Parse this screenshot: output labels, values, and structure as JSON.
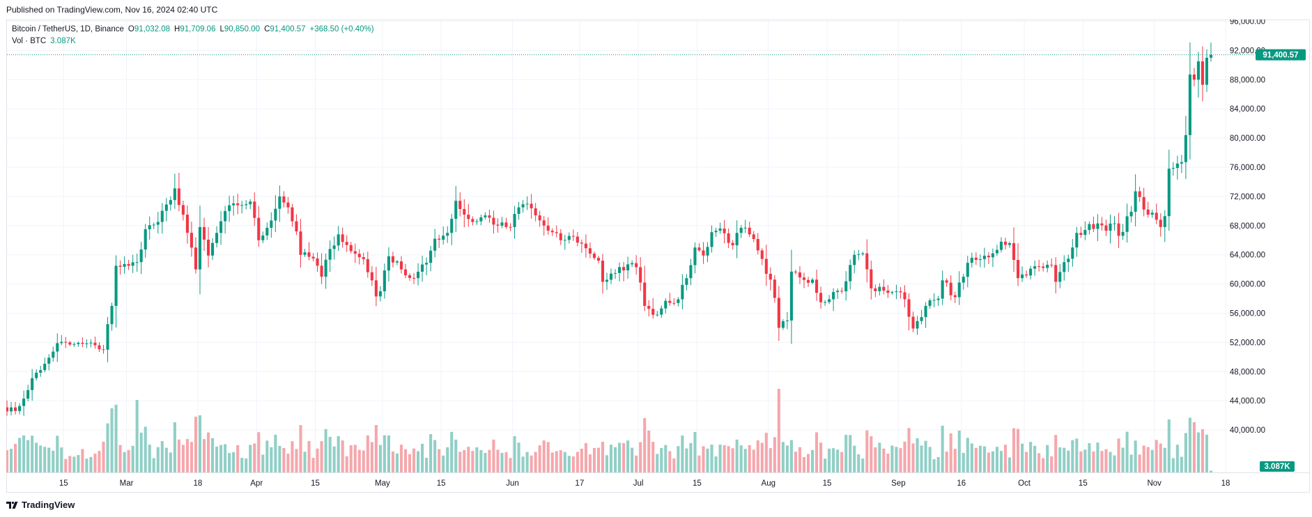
{
  "published": "Published on TradingView.com, Nov 16, 2024 02:40 UTC",
  "brand": "TradingView",
  "legend": {
    "symbol": "Bitcoin / TetherUS, 1D, Binance",
    "open_label": "O",
    "open": "91,032.08",
    "high_label": "H",
    "high": "91,709.06",
    "low_label": "L",
    "low": "90,850.00",
    "close_label": "C",
    "close": "91,400.57",
    "change": "+368.50 (+0.40%)",
    "vol_label": "Vol · BTC",
    "vol": "3.087K"
  },
  "colors": {
    "up": "#089981",
    "down": "#F23645",
    "vol_up": "#90CFC6",
    "vol_down": "#F5A7AC",
    "grid": "#F0F3FA",
    "text": "#131722"
  },
  "chart_data": {
    "type": "candlestick",
    "title": "Bitcoin / TetherUS, 1D, Binance",
    "x_start": "2024-02-02",
    "x_end": "2024-11-16",
    "ylim": [
      37500,
      100000
    ],
    "y_ticks": [
      "96,000.00",
      "92,000.00",
      "88,000.00",
      "84,000.00",
      "80,000.00",
      "76,000.00",
      "72,000.00",
      "68,000.00",
      "64,000.00",
      "60,000.00",
      "56,000.00",
      "52,000.00",
      "48,000.00",
      "44,000.00",
      "40,000.00"
    ],
    "y_tick_values": [
      96000,
      92000,
      88000,
      84000,
      80000,
      76000,
      72000,
      68000,
      64000,
      60000,
      56000,
      52000,
      48000,
      44000,
      40000
    ],
    "x_ticks": [
      {
        "date": "2024-02-15",
        "label": "15"
      },
      {
        "date": "2024-03-01",
        "label": "Mar"
      },
      {
        "date": "2024-03-18",
        "label": "18"
      },
      {
        "date": "2024-04-01",
        "label": "Apr"
      },
      {
        "date": "2024-04-15",
        "label": "15"
      },
      {
        "date": "2024-05-01",
        "label": "May"
      },
      {
        "date": "2024-05-15",
        "label": "15"
      },
      {
        "date": "2024-06-01",
        "label": "Jun"
      },
      {
        "date": "2024-06-17",
        "label": "17"
      },
      {
        "date": "2024-07-01",
        "label": "Jul"
      },
      {
        "date": "2024-07-15",
        "label": "15"
      },
      {
        "date": "2024-08-01",
        "label": "Aug"
      },
      {
        "date": "2024-08-15",
        "label": "15"
      },
      {
        "date": "2024-09-01",
        "label": "Sep"
      },
      {
        "date": "2024-09-16",
        "label": "16"
      },
      {
        "date": "2024-10-01",
        "label": "Oct"
      },
      {
        "date": "2024-10-15",
        "label": "15"
      },
      {
        "date": "2024-11-01",
        "label": "Nov"
      },
      {
        "date": "2024-11-18",
        "label": "18"
      }
    ],
    "price_anchors": [
      [
        "2024-02-02",
        43100
      ],
      [
        "2024-02-05",
        42600
      ],
      [
        "2024-02-07",
        44300
      ],
      [
        "2024-02-09",
        47100
      ],
      [
        "2024-02-11",
        48200
      ],
      [
        "2024-02-13",
        49900
      ],
      [
        "2024-02-15",
        51900
      ],
      [
        "2024-02-18",
        51700
      ],
      [
        "2024-02-21",
        51800
      ],
      [
        "2024-02-24",
        51600
      ],
      [
        "2024-02-26",
        51000
      ],
      [
        "2024-02-27",
        54500
      ],
      [
        "2024-02-28",
        57000
      ],
      [
        "2024-02-29",
        62500
      ],
      [
        "2024-03-03",
        62500
      ],
      [
        "2024-03-05",
        63000
      ],
      [
        "2024-03-07",
        67500
      ],
      [
        "2024-03-10",
        68500
      ],
      [
        "2024-03-13",
        71500
      ],
      [
        "2024-03-14",
        73100
      ],
      [
        "2024-03-16",
        69500
      ],
      [
        "2024-03-19",
        62000
      ],
      [
        "2024-03-20",
        67800
      ],
      [
        "2024-03-22",
        63900
      ],
      [
        "2024-03-24",
        67000
      ],
      [
        "2024-03-26",
        70000
      ],
      [
        "2024-03-29",
        70800
      ],
      [
        "2024-04-01",
        71300
      ],
      [
        "2024-04-03",
        66000
      ],
      [
        "2024-04-05",
        67700
      ],
      [
        "2024-04-08",
        72000
      ],
      [
        "2024-04-10",
        70500
      ],
      [
        "2024-04-12",
        67200
      ],
      [
        "2024-04-13",
        64000
      ],
      [
        "2024-04-16",
        63500
      ],
      [
        "2024-04-18",
        61000
      ],
      [
        "2024-04-20",
        64800
      ],
      [
        "2024-04-22",
        66800
      ],
      [
        "2024-04-25",
        64500
      ],
      [
        "2024-04-28",
        63400
      ],
      [
        "2024-04-30",
        60500
      ],
      [
        "2024-05-01",
        58300
      ],
      [
        "2024-05-02",
        59000
      ],
      [
        "2024-05-04",
        63800
      ],
      [
        "2024-05-06",
        63100
      ],
      [
        "2024-05-08",
        61200
      ],
      [
        "2024-05-10",
        60800
      ],
      [
        "2024-05-13",
        62900
      ],
      [
        "2024-05-15",
        66200
      ],
      [
        "2024-05-18",
        67000
      ],
      [
        "2024-05-20",
        71400
      ],
      [
        "2024-05-22",
        69500
      ],
      [
        "2024-05-24",
        68500
      ],
      [
        "2024-05-27",
        69400
      ],
      [
        "2024-05-30",
        68000
      ],
      [
        "2024-06-02",
        67800
      ],
      [
        "2024-06-04",
        70500
      ],
      [
        "2024-06-06",
        71000
      ],
      [
        "2024-06-08",
        69400
      ],
      [
        "2024-06-11",
        67300
      ],
      [
        "2024-06-14",
        66000
      ],
      [
        "2024-06-17",
        66500
      ],
      [
        "2024-06-20",
        64900
      ],
      [
        "2024-06-23",
        63200
      ],
      [
        "2024-06-24",
        60300
      ],
      [
        "2024-06-27",
        61500
      ],
      [
        "2024-06-30",
        62700
      ],
      [
        "2024-07-02",
        62300
      ],
      [
        "2024-07-03",
        60200
      ],
      [
        "2024-07-04",
        57000
      ],
      [
        "2024-07-05",
        56600
      ],
      [
        "2024-07-07",
        55800
      ],
      [
        "2024-07-09",
        57700
      ],
      [
        "2024-07-12",
        57900
      ],
      [
        "2024-07-14",
        60800
      ],
      [
        "2024-07-16",
        65000
      ],
      [
        "2024-07-18",
        63900
      ],
      [
        "2024-07-20",
        67100
      ],
      [
        "2024-07-22",
        67600
      ],
      [
        "2024-07-25",
        65300
      ],
      [
        "2024-07-27",
        67700
      ],
      [
        "2024-07-29",
        66800
      ],
      [
        "2024-07-31",
        64600
      ],
      [
        "2024-08-02",
        61400
      ],
      [
        "2024-08-03",
        60600
      ],
      [
        "2024-08-04",
        58100
      ],
      [
        "2024-08-05",
        54000
      ],
      [
        "2024-08-07",
        55000
      ],
      [
        "2024-08-08",
        61700
      ],
      [
        "2024-08-10",
        60900
      ],
      [
        "2024-08-13",
        60600
      ],
      [
        "2024-08-15",
        57500
      ],
      [
        "2024-08-18",
        58900
      ],
      [
        "2024-08-20",
        59000
      ],
      [
        "2024-08-23",
        64000
      ],
      [
        "2024-08-25",
        64200
      ],
      [
        "2024-08-27",
        59400
      ],
      [
        "2024-08-30",
        59100
      ],
      [
        "2024-09-02",
        59000
      ],
      [
        "2024-09-04",
        57900
      ],
      [
        "2024-09-06",
        53900
      ],
      [
        "2024-09-09",
        57000
      ],
      [
        "2024-09-12",
        58000
      ],
      [
        "2024-09-13",
        60500
      ],
      [
        "2024-09-16",
        58200
      ],
      [
        "2024-09-19",
        62900
      ],
      [
        "2024-09-22",
        63400
      ],
      [
        "2024-09-25",
        64200
      ],
      [
        "2024-09-27",
        65800
      ],
      [
        "2024-09-29",
        65600
      ],
      [
        "2024-09-30",
        63300
      ],
      [
        "2024-10-01",
        60800
      ],
      [
        "2024-10-04",
        62100
      ],
      [
        "2024-10-07",
        62200
      ],
      [
        "2024-10-09",
        62600
      ],
      [
        "2024-10-10",
        60300
      ],
      [
        "2024-10-12",
        63000
      ],
      [
        "2024-10-14",
        65000
      ],
      [
        "2024-10-15",
        67000
      ],
      [
        "2024-10-17",
        67400
      ],
      [
        "2024-10-20",
        68300
      ],
      [
        "2024-10-22",
        67300
      ],
      [
        "2024-10-24",
        68300
      ],
      [
        "2024-10-25",
        66600
      ],
      [
        "2024-10-28",
        69900
      ],
      [
        "2024-10-29",
        72700
      ],
      [
        "2024-10-31",
        70200
      ],
      [
        "2024-11-01",
        69500
      ],
      [
        "2024-11-03",
        68800
      ],
      [
        "2024-11-04",
        67800
      ],
      [
        "2024-11-05",
        69300
      ],
      [
        "2024-11-06",
        75800
      ],
      [
        "2024-11-07",
        75900
      ],
      [
        "2024-11-08",
        76500
      ],
      [
        "2024-11-09",
        76700
      ],
      [
        "2024-11-10",
        80400
      ],
      [
        "2024-11-11",
        88700
      ],
      [
        "2024-11-12",
        88000
      ],
      [
        "2024-11-13",
        90500
      ],
      [
        "2024-11-14",
        87300
      ],
      [
        "2024-11-15",
        91000
      ],
      [
        "2024-11-16",
        91400
      ]
    ],
    "volume_scale_max": 150000,
    "volume_peaks": [
      [
        "2024-02-26",
        55000
      ],
      [
        "2024-02-28",
        115000
      ],
      [
        "2024-03-05",
        130000
      ],
      [
        "2024-03-14",
        90000
      ],
      [
        "2024-03-19",
        100000
      ],
      [
        "2024-04-13",
        85000
      ],
      [
        "2024-05-01",
        85000
      ],
      [
        "2024-06-24",
        55000
      ],
      [
        "2024-07-05",
        75000
      ],
      [
        "2024-08-05",
        150000
      ],
      [
        "2024-08-08",
        58000
      ],
      [
        "2024-09-06",
        52000
      ],
      [
        "2024-11-06",
        95000
      ],
      [
        "2024-11-11",
        98000
      ],
      [
        "2024-11-12",
        90000
      ]
    ],
    "last_price": 91400.57,
    "last_price_label": "91,400.57",
    "last_volume_label": "3.087K"
  }
}
